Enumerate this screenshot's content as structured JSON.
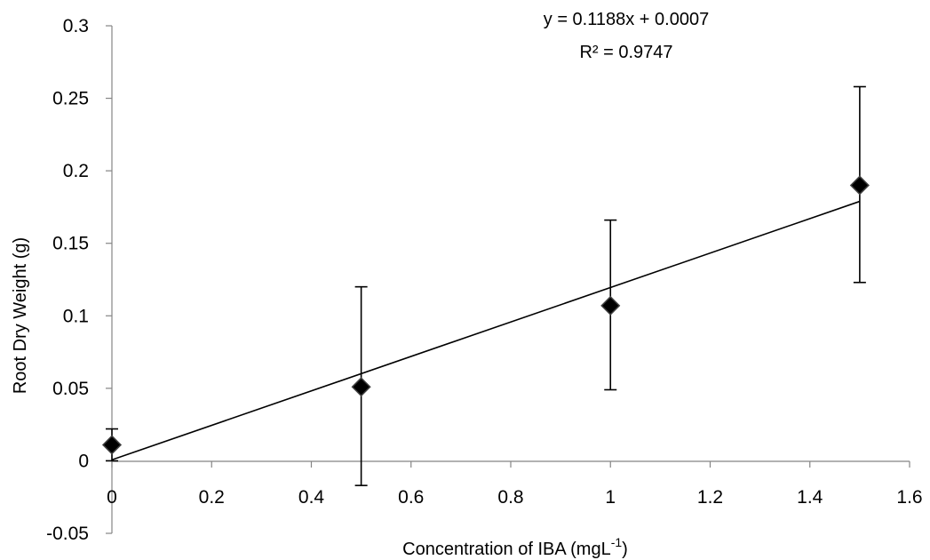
{
  "chart_data": {
    "type": "scatter",
    "xlabel": "Concentration of IBA (mgL",
    "xlabel_sup": "-1",
    "xlabel_end": ")",
    "ylabel": "Root Dry Weight  (g)",
    "xlim": [
      0,
      1.6
    ],
    "ylim": [
      -0.05,
      0.3
    ],
    "x_ticks": [
      0,
      0.2,
      0.4,
      0.6,
      0.8,
      1,
      1.2,
      1.4,
      1.6
    ],
    "x_tick_labels": [
      "0",
      "0.2",
      "0.4",
      "0.6",
      "0.8",
      "1",
      "1.2",
      "1.4",
      "1.6"
    ],
    "y_ticks": [
      -0.05,
      0,
      0.05,
      0.1,
      0.15,
      0.2,
      0.25,
      0.3
    ],
    "y_tick_labels": [
      "-0.05",
      "0",
      "0.05",
      "0.1",
      "0.15",
      "0.2",
      "0.25",
      "0.3"
    ],
    "grid": false,
    "marker": "diamond",
    "marker_color": "#000000",
    "points": [
      {
        "x": 0,
        "y": 0.011,
        "err_low": 0.011,
        "err_high": 0.011
      },
      {
        "x": 0.5,
        "y": 0.051,
        "err_low": 0.068,
        "err_high": 0.069
      },
      {
        "x": 1,
        "y": 0.107,
        "err_low": 0.058,
        "err_high": 0.059
      },
      {
        "x": 1.5,
        "y": 0.19,
        "err_low": 0.067,
        "err_high": 0.068
      }
    ],
    "trendline": {
      "type": "linear",
      "slope": 0.1188,
      "intercept": 0.0007,
      "x_range": [
        0,
        1.5
      ],
      "equation_label": "y = 0.1188x + 0.0007",
      "r2_label": "R² = 0.9747"
    }
  }
}
